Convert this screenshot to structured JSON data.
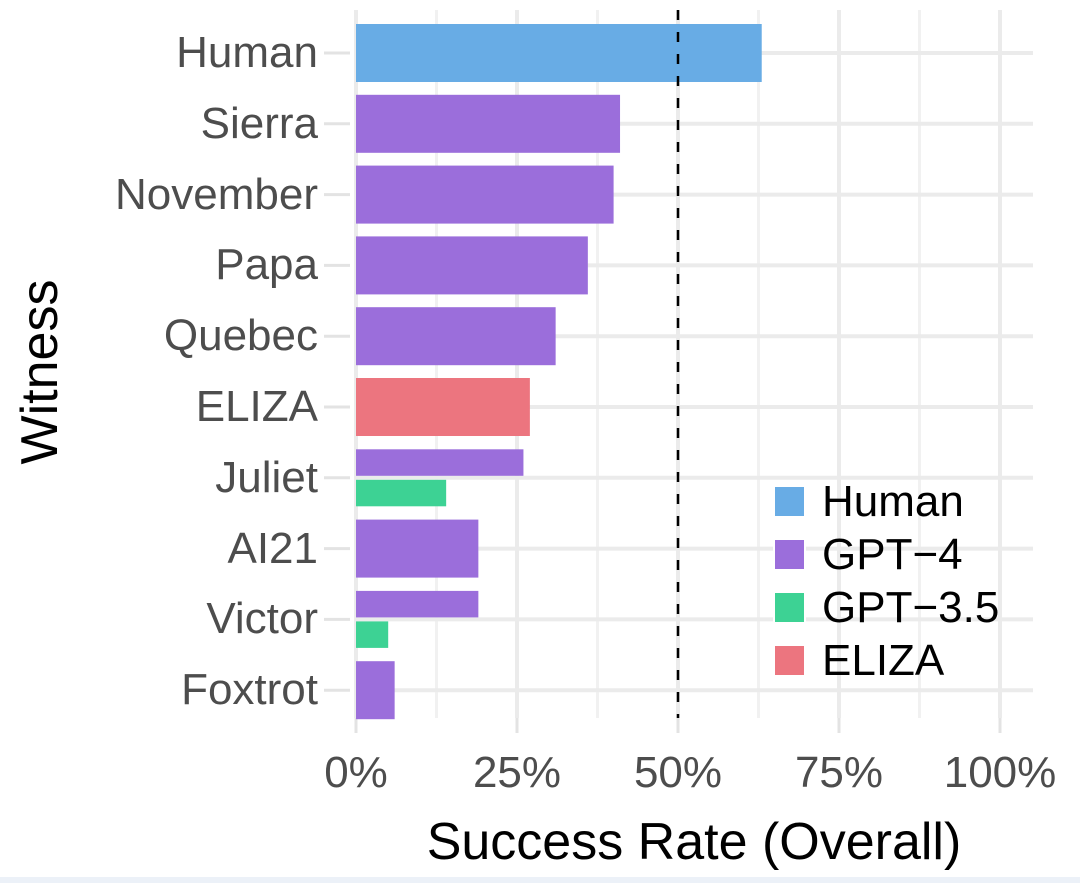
{
  "chart_data": {
    "type": "bar",
    "orientation": "horizontal",
    "xlabel": "Success Rate (Overall)",
    "ylabel": "Witness",
    "xlim": [
      0,
      105
    ],
    "grid": true,
    "x_axis": {
      "ticks": [
        {
          "value": 0,
          "label": "0%"
        },
        {
          "value": 25,
          "label": "25%"
        },
        {
          "value": 50,
          "label": "50%"
        },
        {
          "value": 75,
          "label": "75%"
        },
        {
          "value": 100,
          "label": "100%"
        }
      ],
      "minor_tick_values": [
        12.5,
        37.5,
        62.5,
        87.5
      ]
    },
    "reference_line": {
      "value": 50,
      "style": "dashed",
      "color": "#000000"
    },
    "categories": [
      "Human",
      "Sierra",
      "November",
      "Papa",
      "Quebec",
      "ELIZA",
      "Juliet",
      "AI21",
      "Victor",
      "Foxtrot"
    ],
    "rows": [
      {
        "witness": "Human",
        "bars": [
          {
            "group": "Human",
            "value": 63
          }
        ]
      },
      {
        "witness": "Sierra",
        "bars": [
          {
            "group": "GPT-4",
            "value": 41
          }
        ]
      },
      {
        "witness": "November",
        "bars": [
          {
            "group": "GPT-4",
            "value": 40
          }
        ]
      },
      {
        "witness": "Papa",
        "bars": [
          {
            "group": "GPT-4",
            "value": 36
          }
        ]
      },
      {
        "witness": "Quebec",
        "bars": [
          {
            "group": "GPT-4",
            "value": 31
          }
        ]
      },
      {
        "witness": "ELIZA",
        "bars": [
          {
            "group": "ELIZA",
            "value": 27
          }
        ]
      },
      {
        "witness": "Juliet",
        "bars": [
          {
            "group": "GPT-4",
            "value": 26
          },
          {
            "group": "GPT-3.5",
            "value": 14
          }
        ]
      },
      {
        "witness": "AI21",
        "bars": [
          {
            "group": "GPT-4",
            "value": 19
          }
        ]
      },
      {
        "witness": "Victor",
        "bars": [
          {
            "group": "GPT-4",
            "value": 19
          },
          {
            "group": "GPT-3.5",
            "value": 5
          }
        ]
      },
      {
        "witness": "Foxtrot",
        "bars": [
          {
            "group": "GPT-4",
            "value": 6
          }
        ]
      }
    ],
    "colors": {
      "Human": "#68ACE5",
      "GPT-4": "#9B6EDB",
      "GPT-3.5": "#3DD294",
      "ELIZA": "#EC757F"
    },
    "legend": {
      "position": "inside-bottom-right",
      "entries": [
        {
          "group": "Human",
          "label": "Human",
          "color": "#68ACE5"
        },
        {
          "group": "GPT-4",
          "label": "GPT−4",
          "color": "#9B6EDB"
        },
        {
          "group": "GPT-3.5",
          "label": "GPT−3.5",
          "color": "#3DD294"
        },
        {
          "group": "ELIZA",
          "label": "ELIZA",
          "color": "#EC757F"
        }
      ]
    },
    "style": {
      "grid_major_color": "#EBEBEB",
      "grid_minor_color": "#F1F1F1",
      "tick_color": "#E3E3E3",
      "axis_text_color": "#4d4d4d",
      "title_color": "#000000",
      "background": "#ffffff",
      "bottom_strip_color": "#ecf1f8"
    }
  }
}
